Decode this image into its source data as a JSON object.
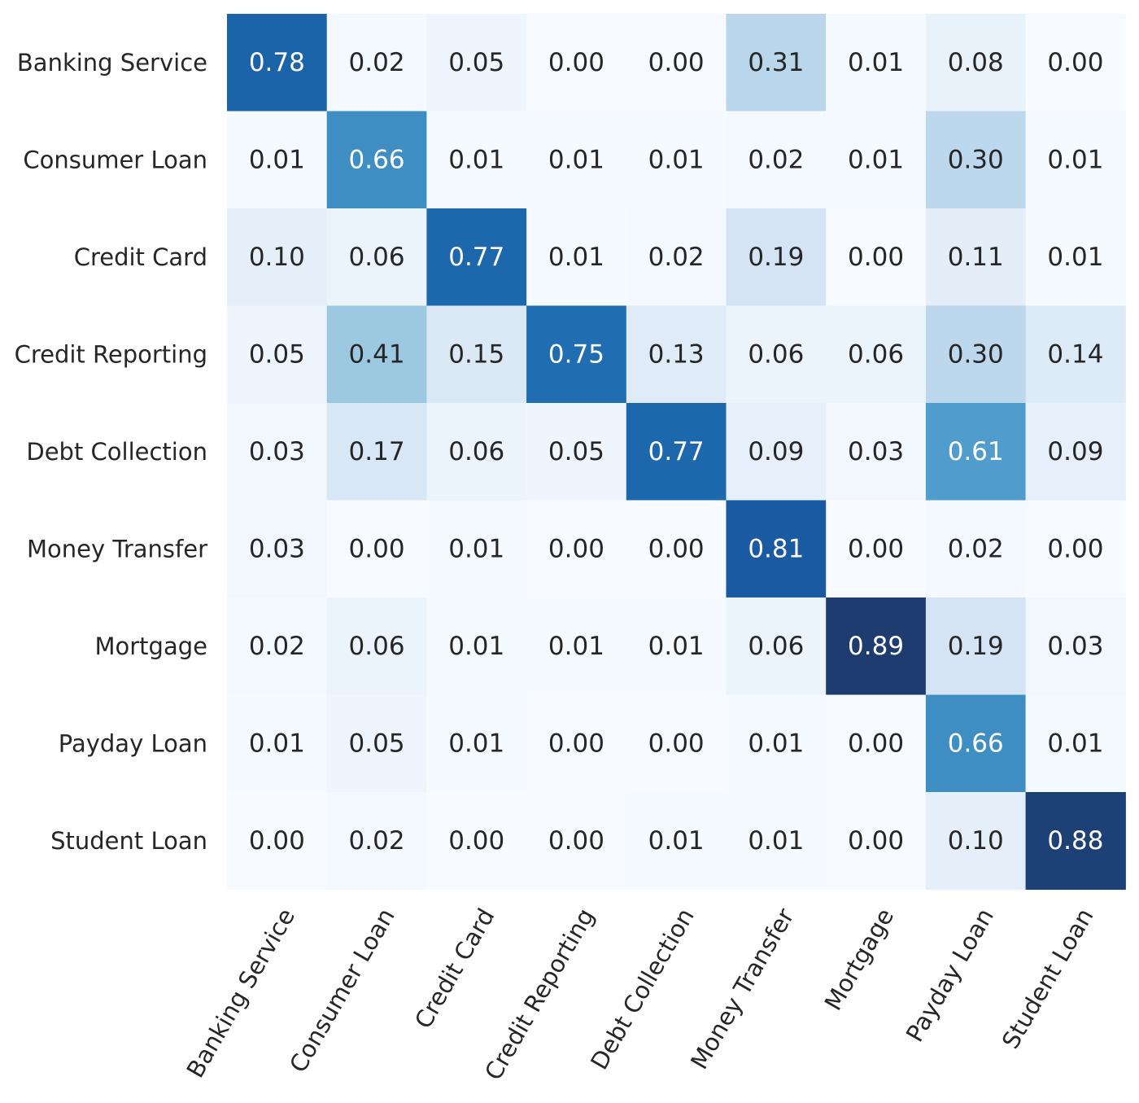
{
  "chart_data": {
    "type": "heatmap",
    "rows": [
      "Banking Service",
      "Consumer Loan",
      "Credit Card",
      "Credit Reporting",
      "Debt Collection",
      "Money Transfer",
      "Mortgage",
      "Payday Loan",
      "Student Loan"
    ],
    "columns": [
      "Banking Service",
      "Consumer Loan",
      "Credit Card",
      "Credit Reporting",
      "Debt Collection",
      "Money Transfer",
      "Mortgage",
      "Payday Loan",
      "Student Loan"
    ],
    "values": [
      [
        0.78,
        0.02,
        0.05,
        0.0,
        0.0,
        0.31,
        0.01,
        0.08,
        0.0
      ],
      [
        0.01,
        0.66,
        0.01,
        0.01,
        0.01,
        0.02,
        0.01,
        0.3,
        0.01
      ],
      [
        0.1,
        0.06,
        0.77,
        0.01,
        0.02,
        0.19,
        0.0,
        0.11,
        0.01
      ],
      [
        0.05,
        0.41,
        0.15,
        0.75,
        0.13,
        0.06,
        0.06,
        0.3,
        0.14
      ],
      [
        0.03,
        0.17,
        0.06,
        0.05,
        0.77,
        0.09,
        0.03,
        0.61,
        0.09
      ],
      [
        0.03,
        0.0,
        0.01,
        0.0,
        0.0,
        0.81,
        0.0,
        0.02,
        0.0
      ],
      [
        0.02,
        0.06,
        0.01,
        0.01,
        0.01,
        0.06,
        0.89,
        0.19,
        0.03
      ],
      [
        0.01,
        0.05,
        0.01,
        0.0,
        0.0,
        0.01,
        0.0,
        0.66,
        0.01
      ],
      [
        0.0,
        0.02,
        0.0,
        0.0,
        0.01,
        0.01,
        0.0,
        0.1,
        0.88
      ]
    ],
    "value_format": "2 decimals",
    "colormap": "Blues",
    "value_range": [
      0,
      0.9
    ],
    "colors": {
      "low": "#f7fbff",
      "high": "#1f3868",
      "text_dark": "#262626",
      "text_light": "#ffffff"
    },
    "title": "",
    "xlabel": "",
    "ylabel": "",
    "x_tick_rotation_deg": 60,
    "grid": false,
    "legend": "none"
  }
}
